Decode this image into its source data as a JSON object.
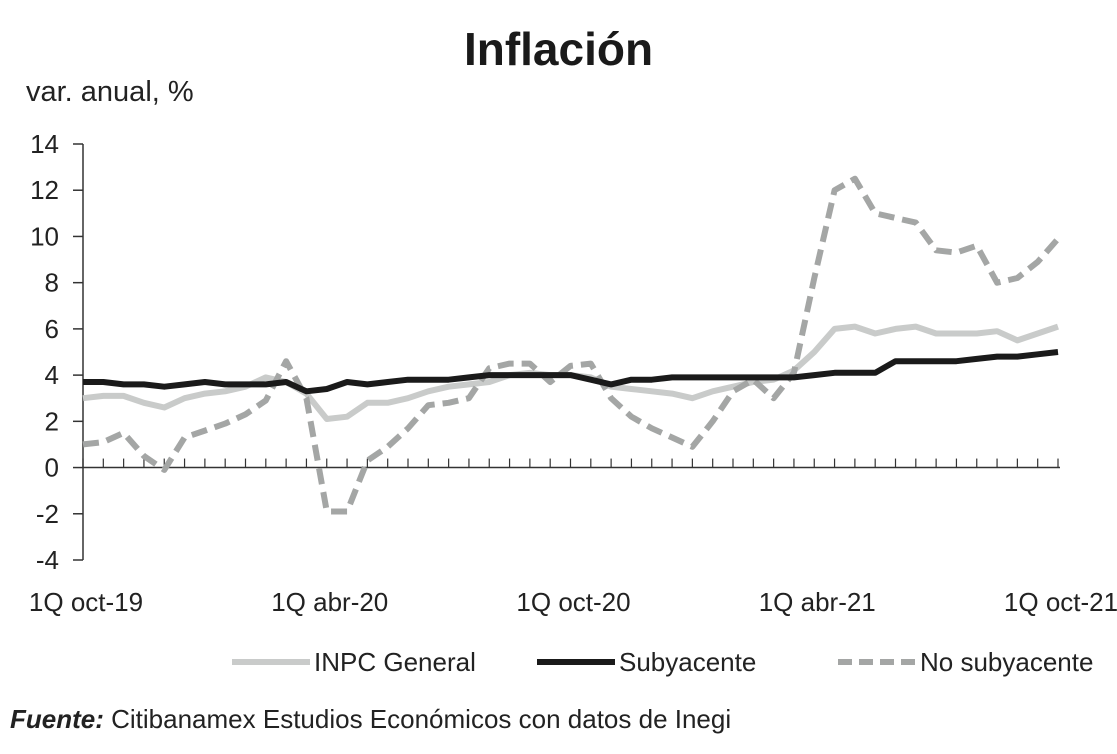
{
  "chart_data": {
    "type": "line",
    "title": "Inflación",
    "ylabel": "var. anual, %",
    "xlabel": "",
    "ylim": [
      -4,
      14
    ],
    "yticks": [
      -4,
      -2,
      0,
      2,
      4,
      6,
      8,
      10,
      12,
      14
    ],
    "x_tick_labels": [
      "1Q oct-19",
      "1Q abr-20",
      "1Q oct-20",
      "1Q abr-21",
      "1Q oct-21"
    ],
    "x_tick_label_at_period": [
      0,
      12,
      24,
      36,
      48
    ],
    "periods": 49,
    "grid": false,
    "legend_position": "bottom",
    "series": [
      {
        "name": "INPC General",
        "color": "#c9cbca",
        "style": "solid",
        "values": [
          3.0,
          3.1,
          3.1,
          2.8,
          2.6,
          3.0,
          3.2,
          3.3,
          3.5,
          3.9,
          3.7,
          3.2,
          2.1,
          2.2,
          2.8,
          2.8,
          3.0,
          3.3,
          3.5,
          3.6,
          3.7,
          4.0,
          4.1,
          4.0,
          4.0,
          3.9,
          3.5,
          3.4,
          3.3,
          3.2,
          3.0,
          3.3,
          3.5,
          3.7,
          3.8,
          4.2,
          5.0,
          6.0,
          6.1,
          5.8,
          6.0,
          6.1,
          5.8,
          5.8,
          5.8,
          5.9,
          5.5,
          5.8,
          6.1
        ]
      },
      {
        "name": "Subyacente",
        "color": "#1a1a1a",
        "style": "solid",
        "values": [
          3.7,
          3.7,
          3.6,
          3.6,
          3.5,
          3.6,
          3.7,
          3.6,
          3.6,
          3.6,
          3.7,
          3.3,
          3.4,
          3.7,
          3.6,
          3.7,
          3.8,
          3.8,
          3.8,
          3.9,
          4.0,
          4.0,
          4.0,
          4.0,
          4.0,
          3.8,
          3.6,
          3.8,
          3.8,
          3.9,
          3.9,
          3.9,
          3.9,
          3.9,
          3.9,
          3.9,
          4.0,
          4.1,
          4.1,
          4.1,
          4.6,
          4.6,
          4.6,
          4.6,
          4.7,
          4.8,
          4.8,
          4.9,
          5.0
        ]
      },
      {
        "name": "No subyacente",
        "color": "#a4a6a5",
        "style": "dashed",
        "values": [
          1.0,
          1.1,
          1.5,
          0.5,
          -0.1,
          1.3,
          1.6,
          1.9,
          2.3,
          2.9,
          4.6,
          3.0,
          -1.9,
          -1.9,
          0.3,
          0.9,
          1.7,
          2.7,
          2.8,
          3.0,
          4.3,
          4.5,
          4.5,
          3.7,
          4.4,
          4.5,
          3.0,
          2.2,
          1.7,
          1.3,
          0.9,
          2.0,
          3.3,
          3.8,
          3.0,
          4.1,
          8.2,
          12.0,
          12.5,
          11.0,
          10.8,
          10.6,
          9.4,
          9.3,
          9.6,
          8.0,
          8.2,
          8.9,
          9.9
        ]
      }
    ]
  },
  "source": {
    "label": "Fuente:",
    "text": " Citibanamex Estudios Económicos con datos de Inegi"
  }
}
